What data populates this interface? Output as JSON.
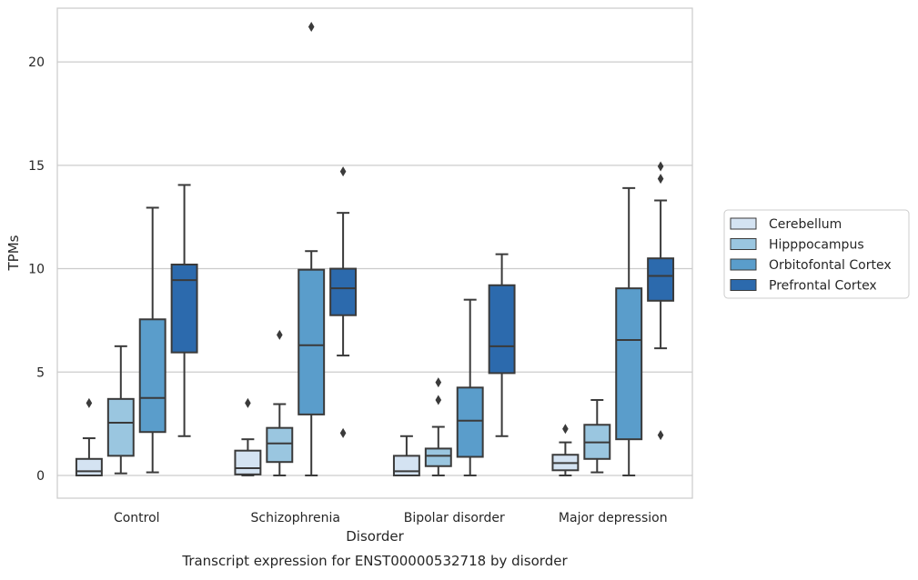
{
  "chart_data": {
    "type": "boxplot",
    "title": "",
    "caption": "Transcript expression for ENST00000532718 by disorder",
    "xlabel": "Disorder",
    "ylabel": "TPMs",
    "ylim": [
      -1.1,
      22.6
    ],
    "yticks": [
      0,
      5,
      10,
      15,
      20
    ],
    "grid": "horizontal",
    "legend_position": "right",
    "categories": [
      "Control",
      "Schizophrenia",
      "Bipolar disorder",
      "Major depression"
    ],
    "series": [
      {
        "name": "Cerebellum",
        "color": "#d4e3f2",
        "boxes": [
          {
            "whisker_low": 0.0,
            "q1": 0.0,
            "median": 0.2,
            "q3": 0.8,
            "whisker_high": 1.8,
            "outliers": [
              3.5
            ]
          },
          {
            "whisker_low": 0.0,
            "q1": 0.05,
            "median": 0.35,
            "q3": 1.2,
            "whisker_high": 1.75,
            "outliers": [
              3.5
            ]
          },
          {
            "whisker_low": 0.0,
            "q1": 0.0,
            "median": 0.2,
            "q3": 0.95,
            "whisker_high": 1.9,
            "outliers": []
          },
          {
            "whisker_low": 0.0,
            "q1": 0.25,
            "median": 0.6,
            "q3": 1.0,
            "whisker_high": 1.6,
            "outliers": [
              2.25
            ]
          }
        ]
      },
      {
        "name": "Hipppocampus",
        "color": "#9ac6e0",
        "boxes": [
          {
            "whisker_low": 0.1,
            "q1": 0.95,
            "median": 2.55,
            "q3": 3.7,
            "whisker_high": 6.25,
            "outliers": []
          },
          {
            "whisker_low": 0.0,
            "q1": 0.65,
            "median": 1.55,
            "q3": 2.3,
            "whisker_high": 3.45,
            "outliers": [
              6.8
            ]
          },
          {
            "whisker_low": 0.0,
            "q1": 0.45,
            "median": 0.95,
            "q3": 1.3,
            "whisker_high": 2.35,
            "outliers": [
              3.65,
              4.5
            ]
          },
          {
            "whisker_low": 0.15,
            "q1": 0.8,
            "median": 1.6,
            "q3": 2.45,
            "whisker_high": 3.65,
            "outliers": []
          }
        ]
      },
      {
        "name": "Orbitofontal Cortex",
        "color": "#5a9dcb",
        "boxes": [
          {
            "whisker_low": 0.15,
            "q1": 2.1,
            "median": 3.75,
            "q3": 7.55,
            "whisker_high": 12.95,
            "outliers": []
          },
          {
            "whisker_low": 0.0,
            "q1": 2.95,
            "median": 6.3,
            "q3": 9.95,
            "whisker_high": 10.85,
            "outliers": [
              21.7
            ]
          },
          {
            "whisker_low": 0.0,
            "q1": 0.9,
            "median": 2.65,
            "q3": 4.25,
            "whisker_high": 8.5,
            "outliers": []
          },
          {
            "whisker_low": 0.0,
            "q1": 1.75,
            "median": 6.55,
            "q3": 9.05,
            "whisker_high": 13.9,
            "outliers": []
          }
        ]
      },
      {
        "name": "Prefrontal Cortex",
        "color": "#2c6aad",
        "boxes": [
          {
            "whisker_low": 1.9,
            "q1": 5.95,
            "median": 9.45,
            "q3": 10.2,
            "whisker_high": 14.05,
            "outliers": []
          },
          {
            "whisker_low": 5.8,
            "q1": 7.75,
            "median": 9.05,
            "q3": 10.0,
            "whisker_high": 12.7,
            "outliers": [
              2.05,
              14.7
            ]
          },
          {
            "whisker_low": 1.9,
            "q1": 4.95,
            "median": 6.25,
            "q3": 9.2,
            "whisker_high": 10.7,
            "outliers": []
          },
          {
            "whisker_low": 6.15,
            "q1": 8.45,
            "median": 9.65,
            "q3": 10.5,
            "whisker_high": 13.3,
            "outliers": [
              1.95,
              14.35,
              14.95
            ]
          }
        ]
      }
    ]
  }
}
